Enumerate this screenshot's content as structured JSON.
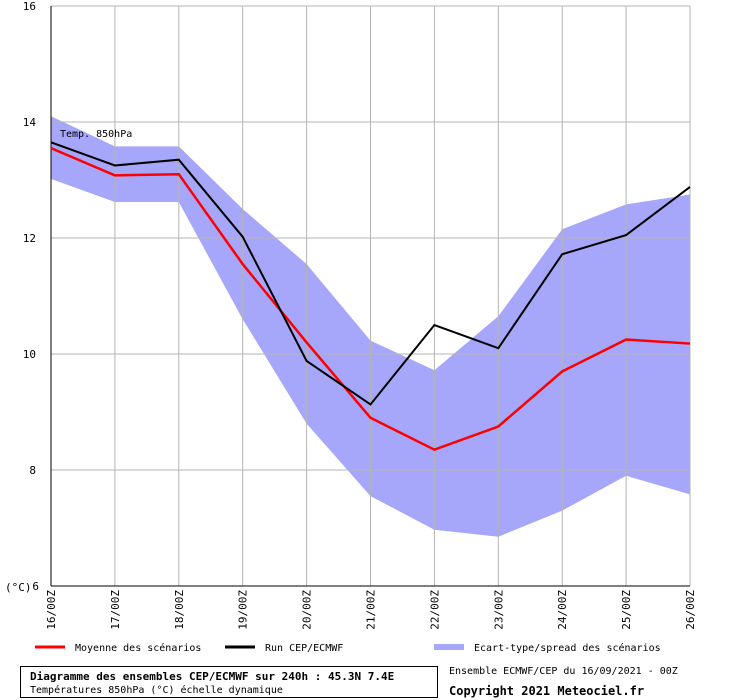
{
  "chart_data": {
    "type": "line",
    "categories": [
      "16/00Z",
      "17/00Z",
      "18/00Z",
      "19/00Z",
      "20/00Z",
      "21/00Z",
      "22/00Z",
      "23/00Z",
      "24/00Z",
      "25/00Z",
      "26/00Z"
    ],
    "series": [
      {
        "name": "Moyenne des scénarios",
        "color": "#ff0000",
        "values": [
          13.55,
          13.08,
          13.1,
          11.55,
          10.2,
          8.9,
          8.35,
          8.75,
          9.7,
          10.25,
          10.18
        ]
      },
      {
        "name": "Run CEP/ECMWF",
        "color": "#000000",
        "values": [
          13.65,
          13.25,
          13.35,
          12.02,
          9.88,
          9.13,
          10.5,
          10.1,
          11.72,
          12.05,
          12.88
        ]
      }
    ],
    "spread": {
      "name": "Ecart-type/spread des scénarios",
      "color": "#a6a6fa",
      "upper": [
        14.1,
        13.58,
        13.58,
        12.5,
        11.55,
        10.23,
        9.72,
        10.65,
        12.15,
        12.58,
        12.75
      ],
      "lower": [
        13.02,
        12.62,
        12.62,
        10.6,
        8.8,
        7.55,
        6.97,
        6.85,
        7.3,
        7.9,
        7.58
      ]
    },
    "ylim": [
      6,
      16
    ],
    "yticks": [
      6,
      8,
      10,
      12,
      14,
      16
    ],
    "ylabel": "(°C)",
    "annotation": "Temp. 850hPa",
    "grid": true,
    "legend_position": "bottom"
  },
  "footer": {
    "title": "Diagramme des ensembles CEP/ECMWF sur 240h : 45.3N 7.4E",
    "subtitle": "Températures 850hPa (°C) échelle dynamique",
    "run_info": "Ensemble ECMWF/CEP du 16/09/2021 - 00Z",
    "copyright": "Copyright 2021 Meteociel.fr"
  }
}
